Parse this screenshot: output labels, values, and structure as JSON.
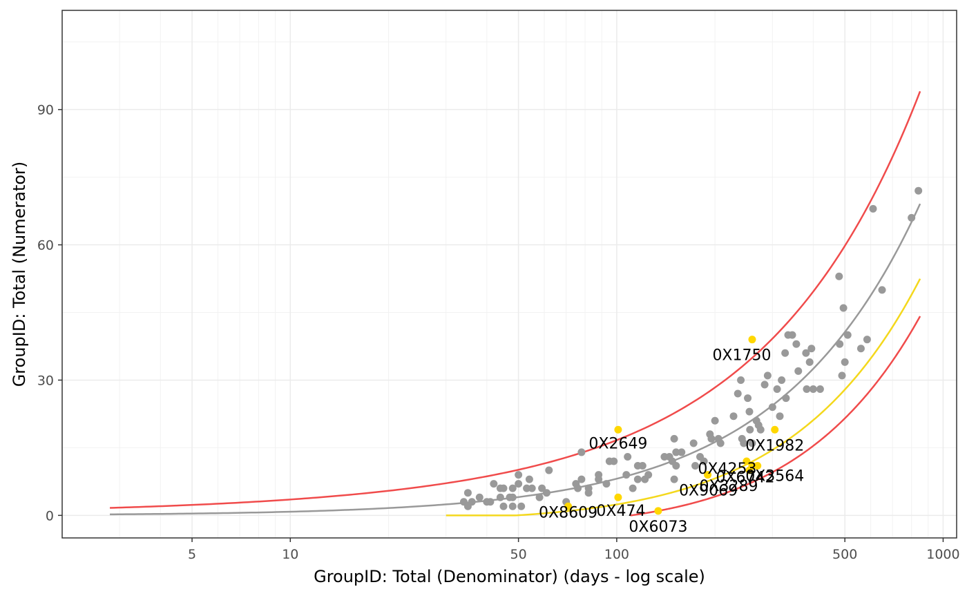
{
  "chart_data": {
    "type": "scatter",
    "title": "",
    "xlabel": "GroupID:  Total (Denominator) (days - log scale)",
    "ylabel": "GroupID:  Total (Numerator)",
    "x_scale": "log",
    "xlim": [
      2.0,
      1100
    ],
    "ylim": [
      -5,
      112
    ],
    "x_ticks": [
      5,
      10,
      50,
      100,
      500,
      1000
    ],
    "x_tick_labels": [
      "5",
      "10",
      "50",
      "100",
      "500",
      "1000"
    ],
    "y_ticks": [
      0,
      30,
      60,
      90
    ],
    "y_tick_labels": [
      "0",
      "30",
      "60",
      "90"
    ],
    "grid": true,
    "legend": "none",
    "colors": {
      "points": "#999999",
      "highlight": "#ffd700",
      "expected_line": "#999999",
      "upper_bound": "#f04b4b",
      "lower_bound": "#f04b4b",
      "inner_line": "#f4d81c"
    },
    "curves": {
      "x_range": [
        2.8,
        850
      ],
      "inner_x_range": [
        30,
        850
      ],
      "lower_x_range": [
        110,
        850
      ],
      "expected_rate": 0.0813,
      "outer_z": 3.0,
      "inner_z": -2.0
    },
    "points": [
      [
        34,
        3
      ],
      [
        35,
        2
      ],
      [
        35,
        5
      ],
      [
        36,
        3
      ],
      [
        38,
        4
      ],
      [
        40,
        3
      ],
      [
        41,
        3
      ],
      [
        42,
        7
      ],
      [
        44,
        6
      ],
      [
        44,
        4
      ],
      [
        45,
        6
      ],
      [
        45,
        2
      ],
      [
        47,
        4
      ],
      [
        48,
        6
      ],
      [
        48,
        2
      ],
      [
        48,
        4
      ],
      [
        50,
        9
      ],
      [
        50,
        7
      ],
      [
        51,
        2
      ],
      [
        53,
        6
      ],
      [
        54,
        8
      ],
      [
        55,
        6
      ],
      [
        58,
        4
      ],
      [
        59,
        6
      ],
      [
        61,
        5
      ],
      [
        62,
        10
      ],
      [
        70,
        3
      ],
      [
        75,
        7
      ],
      [
        76,
        6
      ],
      [
        78,
        14
      ],
      [
        78,
        8
      ],
      [
        82,
        5
      ],
      [
        82,
        6
      ],
      [
        88,
        9
      ],
      [
        88,
        8
      ],
      [
        93,
        7
      ],
      [
        95,
        12
      ],
      [
        98,
        12
      ],
      [
        107,
        9
      ],
      [
        108,
        13
      ],
      [
        112,
        6
      ],
      [
        116,
        11
      ],
      [
        116,
        8
      ],
      [
        120,
        11
      ],
      [
        122,
        8
      ],
      [
        125,
        9
      ],
      [
        140,
        13
      ],
      [
        145,
        13
      ],
      [
        148,
        12
      ],
      [
        150,
        17
      ],
      [
        150,
        8
      ],
      [
        152,
        14
      ],
      [
        152,
        11
      ],
      [
        158,
        14
      ],
      [
        172,
        16
      ],
      [
        174,
        11
      ],
      [
        180,
        13
      ],
      [
        185,
        12
      ],
      [
        193,
        18
      ],
      [
        195,
        17
      ],
      [
        200,
        21
      ],
      [
        205,
        17
      ],
      [
        208,
        16
      ],
      [
        228,
        22
      ],
      [
        235,
        27
      ],
      [
        240,
        30
      ],
      [
        242,
        17
      ],
      [
        245,
        16
      ],
      [
        252,
        26
      ],
      [
        255,
        23
      ],
      [
        256,
        19
      ],
      [
        260,
        16
      ],
      [
        268,
        21
      ],
      [
        272,
        20
      ],
      [
        276,
        19
      ],
      [
        284,
        29
      ],
      [
        290,
        31
      ],
      [
        300,
        24
      ],
      [
        310,
        28
      ],
      [
        316,
        22
      ],
      [
        320,
        30
      ],
      [
        328,
        36
      ],
      [
        330,
        26
      ],
      [
        335,
        40
      ],
      [
        345,
        40
      ],
      [
        355,
        38
      ],
      [
        360,
        32
      ],
      [
        380,
        36
      ],
      [
        382,
        28
      ],
      [
        390,
        34
      ],
      [
        395,
        37
      ],
      [
        400,
        28
      ],
      [
        420,
        28
      ],
      [
        480,
        53
      ],
      [
        482,
        38
      ],
      [
        490,
        31
      ],
      [
        495,
        46
      ],
      [
        500,
        34
      ],
      [
        510,
        40
      ],
      [
        560,
        37
      ],
      [
        585,
        39
      ],
      [
        610,
        68
      ],
      [
        650,
        50
      ],
      [
        800,
        66
      ],
      [
        840,
        72
      ]
    ],
    "highlighted": [
      {
        "x": 71,
        "y": 2,
        "label": "0X8609"
      },
      {
        "x": 101,
        "y": 19,
        "label": "0X2649"
      },
      {
        "x": 101,
        "y": 4,
        "label": "0X474"
      },
      {
        "x": 134,
        "y": 1,
        "label": "0X6073"
      },
      {
        "x": 190,
        "y": 9,
        "label": "0X9069"
      },
      {
        "x": 260,
        "y": 39,
        "label": "0X1750"
      },
      {
        "x": 305,
        "y": 19,
        "label": "0X1982"
      },
      {
        "x": 250,
        "y": 12,
        "label": "0X4253"
      },
      {
        "x": 260,
        "y": 11,
        "label": "0X6742"
      },
      {
        "x": 270,
        "y": 11,
        "label": "0X3564"
      },
      {
        "x": 255,
        "y": 10,
        "label": "0X3289"
      }
    ]
  }
}
